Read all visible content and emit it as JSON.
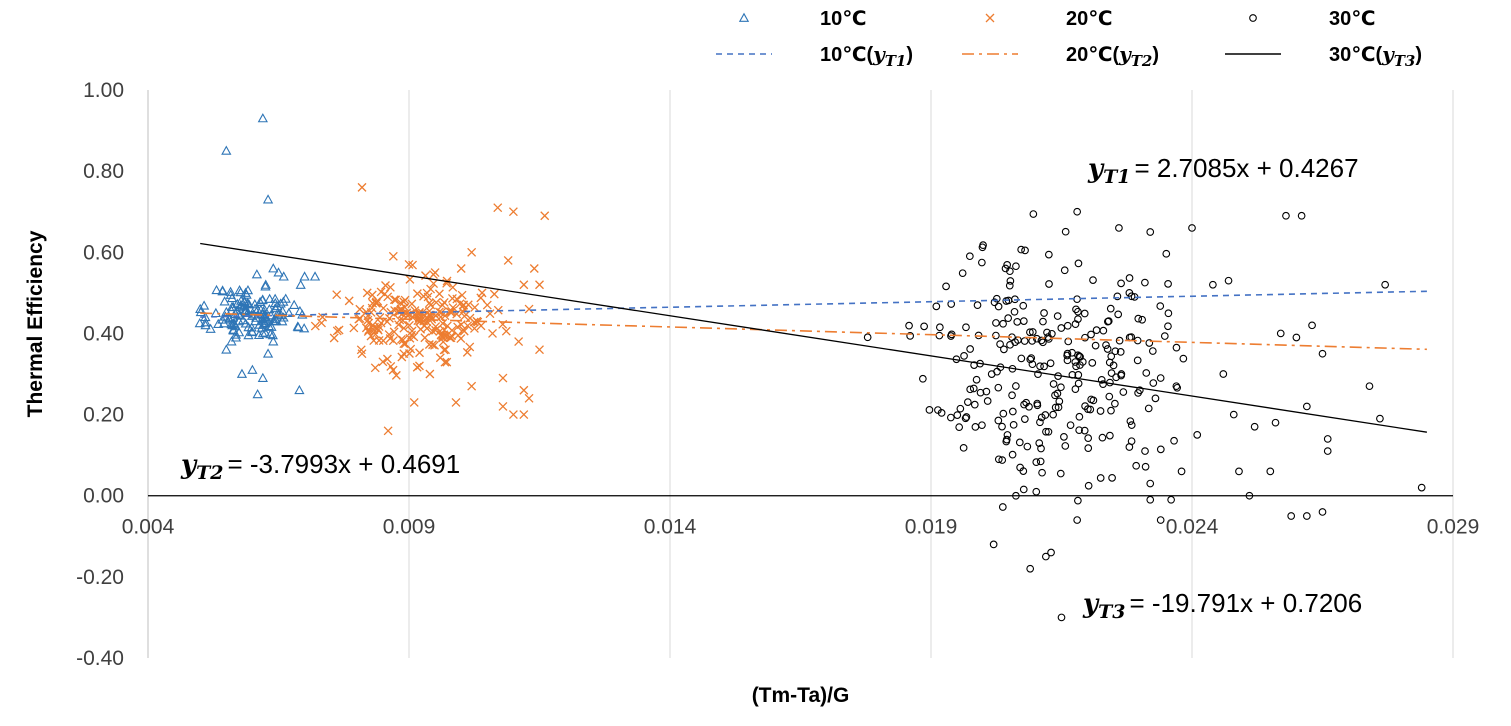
{
  "chart_data": {
    "type": "scatter",
    "title": "",
    "xlabel": "(Tm-Ta)/G",
    "ylabel": "Thermal Efficiency",
    "xlim": [
      0.004,
      0.029
    ],
    "ylim": [
      -0.4,
      1.0
    ],
    "x_ticks": [
      "0.004",
      "0.009",
      "0.014",
      "0.019",
      "0.024",
      "0.029"
    ],
    "y_ticks": [
      "-0.40",
      "-0.20",
      "0.00",
      "0.20",
      "0.40",
      "0.60",
      "0.80",
      "1.00"
    ],
    "x_tick_values": [
      0.004,
      0.009,
      0.014,
      0.019,
      0.024,
      0.029
    ],
    "y_tick_values": [
      -0.4,
      -0.2,
      0.0,
      0.2,
      0.4,
      0.6,
      0.8,
      1.0
    ],
    "grid": "vertical",
    "legend_position": "top",
    "series": [
      {
        "name": "10℃",
        "marker": "triangle",
        "color": "#2E75B6",
        "cluster": {
          "x_mean": 0.006,
          "x_sd": 0.0004,
          "y_mean": 0.45,
          "y_sd": 0.035,
          "count": 130,
          "seed": 11
        },
        "points": [
          [
            0.0062,
            0.93
          ],
          [
            0.0055,
            0.85
          ],
          [
            0.0063,
            0.73
          ],
          [
            0.005,
            0.46
          ],
          [
            0.0051,
            0.44
          ],
          [
            0.0053,
            0.45
          ],
          [
            0.0064,
            0.56
          ],
          [
            0.0065,
            0.55
          ],
          [
            0.0066,
            0.54
          ],
          [
            0.007,
            0.54
          ],
          [
            0.0072,
            0.54
          ],
          [
            0.0068,
            0.47
          ],
          [
            0.0067,
            0.45
          ],
          [
            0.0069,
            0.26
          ],
          [
            0.0062,
            0.29
          ],
          [
            0.0061,
            0.25
          ],
          [
            0.006,
            0.31
          ],
          [
            0.0063,
            0.35
          ],
          [
            0.0055,
            0.36
          ],
          [
            0.0058,
            0.3
          ],
          [
            0.0064,
            0.38
          ],
          [
            0.0056,
            0.38
          ],
          [
            0.0062,
            0.4
          ]
        ]
      },
      {
        "name": "20℃",
        "marker": "x",
        "color": "#ED7D31",
        "cluster": {
          "x_mean": 0.0091,
          "x_sd": 0.0007,
          "y_mean": 0.43,
          "y_sd": 0.045,
          "count": 200,
          "seed": 23
        },
        "points": [
          [
            0.0081,
            0.76
          ],
          [
            0.0107,
            0.71
          ],
          [
            0.011,
            0.7
          ],
          [
            0.0116,
            0.69
          ],
          [
            0.0108,
            0.22
          ],
          [
            0.0102,
            0.27
          ],
          [
            0.0099,
            0.23
          ],
          [
            0.0091,
            0.23
          ],
          [
            0.0085,
            0.33
          ],
          [
            0.0086,
            0.16
          ],
          [
            0.0112,
            0.2
          ],
          [
            0.011,
            0.2
          ],
          [
            0.0113,
            0.24
          ],
          [
            0.0112,
            0.26
          ],
          [
            0.0108,
            0.29
          ],
          [
            0.0096,
            0.34
          ],
          [
            0.0102,
            0.6
          ],
          [
            0.01,
            0.56
          ],
          [
            0.0109,
            0.58
          ],
          [
            0.0095,
            0.55
          ],
          [
            0.009,
            0.57
          ],
          [
            0.0087,
            0.59
          ],
          [
            0.0114,
            0.56
          ],
          [
            0.0112,
            0.52
          ],
          [
            0.0104,
            0.5
          ],
          [
            0.0115,
            0.52
          ],
          [
            0.0115,
            0.36
          ],
          [
            0.0111,
            0.38
          ],
          [
            0.0106,
            0.4
          ],
          [
            0.0113,
            0.46
          ],
          [
            0.0081,
            0.35
          ],
          [
            0.0083,
            0.42
          ],
          [
            0.0082,
            0.5
          ],
          [
            0.0084,
            0.48
          ],
          [
            0.0089,
            0.35
          ],
          [
            0.0092,
            0.32
          ],
          [
            0.0094,
            0.3
          ],
          [
            0.0097,
            0.36
          ],
          [
            0.0103,
            0.43
          ],
          [
            0.0105,
            0.47
          ]
        ]
      },
      {
        "name": "30℃",
        "marker": "circle",
        "color": "#000000",
        "cluster": {
          "x_mean": 0.0212,
          "x_sd": 0.0011,
          "y_mean": 0.33,
          "y_sd": 0.15,
          "count": 260,
          "seed": 37
        },
        "points": [
          [
            0.0218,
            0.7
          ],
          [
            0.0258,
            0.69
          ],
          [
            0.0261,
            0.69
          ],
          [
            0.0226,
            0.66
          ],
          [
            0.024,
            0.66
          ],
          [
            0.0277,
            0.52
          ],
          [
            0.0284,
            0.02
          ],
          [
            0.0232,
            0.03
          ],
          [
            0.0232,
            -0.01
          ],
          [
            0.0236,
            -0.01
          ],
          [
            0.0251,
            0.0
          ],
          [
            0.0259,
            -0.05
          ],
          [
            0.0262,
            -0.05
          ],
          [
            0.0265,
            -0.04
          ],
          [
            0.0234,
            -0.06
          ],
          [
            0.0218,
            -0.06
          ],
          [
            0.0213,
            -0.14
          ],
          [
            0.0212,
            -0.15
          ],
          [
            0.0209,
            -0.18
          ],
          [
            0.0202,
            -0.12
          ],
          [
            0.0215,
            -0.3
          ],
          [
            0.0248,
            0.2
          ],
          [
            0.0256,
            0.18
          ],
          [
            0.0266,
            0.11
          ],
          [
            0.0276,
            0.19
          ],
          [
            0.0274,
            0.27
          ],
          [
            0.0263,
            0.42
          ],
          [
            0.0257,
            0.4
          ],
          [
            0.0252,
            0.17
          ],
          [
            0.0246,
            0.3
          ],
          [
            0.0241,
            0.15
          ],
          [
            0.0237,
            0.27
          ],
          [
            0.0234,
            0.29
          ],
          [
            0.0228,
            0.5
          ],
          [
            0.0229,
            0.49
          ],
          [
            0.023,
            0.26
          ],
          [
            0.0232,
            0.65
          ],
          [
            0.026,
            0.39
          ],
          [
            0.0265,
            0.35
          ],
          [
            0.0247,
            0.53
          ],
          [
            0.0244,
            0.52
          ],
          [
            0.0238,
            0.06
          ],
          [
            0.0249,
            0.06
          ],
          [
            0.0255,
            0.06
          ],
          [
            0.0228,
            0.12
          ],
          [
            0.0231,
            0.11
          ],
          [
            0.0233,
            0.24
          ],
          [
            0.0262,
            0.22
          ],
          [
            0.0266,
            0.14
          ]
        ]
      }
    ],
    "trendlines": [
      {
        "name": "10℃(yT1)",
        "slope": 2.7085,
        "intercept": 0.4267,
        "x_range": [
          0.005,
          0.0285
        ],
        "color": "#4472C4",
        "dash": "dash",
        "equation_text": "= 2.7085x + 0.4267",
        "equation_var": "yT1"
      },
      {
        "name": "20℃(yT2)",
        "slope": -3.7993,
        "intercept": 0.4691,
        "x_range": [
          0.005,
          0.0285
        ],
        "color": "#ED7D31",
        "dash": "dashdot",
        "equation_text": "= -3.7993x + 0.4691",
        "equation_var": "yT2"
      },
      {
        "name": "30℃(yT3)",
        "slope": -19.791,
        "intercept": 0.7206,
        "x_range": [
          0.005,
          0.0285
        ],
        "color": "#000000",
        "dash": "solid",
        "equation_text": "= -19.791x + 0.7206",
        "equation_var": "yT3"
      }
    ],
    "legend": [
      {
        "label": "10℃",
        "kind": "marker",
        "series": 0
      },
      {
        "label": "20℃",
        "kind": "marker",
        "series": 1
      },
      {
        "label": "30℃",
        "kind": "marker",
        "series": 2
      },
      {
        "label": "10℃(yT1)",
        "kind": "line",
        "trend": 0
      },
      {
        "label": "20℃(yT2)",
        "kind": "line",
        "trend": 1
      },
      {
        "label": "30℃(yT3)",
        "kind": "line",
        "trend": 2
      }
    ]
  }
}
